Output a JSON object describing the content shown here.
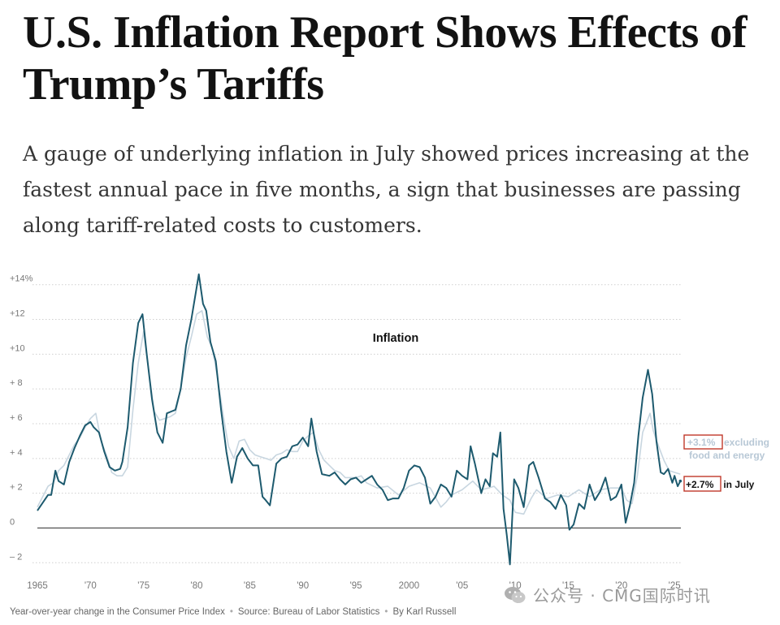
{
  "article": {
    "headline": "U.S. Inflation Report Shows Effects of Trump’s Tariffs",
    "dek": "A gauge of underlying inflation in July showed prices increasing at the fastest annual pace in five months, a sign that businesses are passing along tariff-related costs to customers."
  },
  "footer": {
    "description": "Year-over-year change in the Consumer Price Index",
    "source": "Source: Bureau of Labor Statistics",
    "byline": "By Karl Russell"
  },
  "watermark": {
    "text": "公众号 · CMG国际时讯",
    "icon": "wechat-icon"
  },
  "chart_data": {
    "type": "line",
    "title": "Inflation",
    "xlabel": "",
    "ylabel": "",
    "xlim": [
      1965,
      2025.6
    ],
    "ylim": [
      -2.5,
      14.5
    ],
    "x_ticks": [
      {
        "value": 1965,
        "label": "1965"
      },
      {
        "value": 1970,
        "label": "'70"
      },
      {
        "value": 1975,
        "label": "'75"
      },
      {
        "value": 1980,
        "label": "'80"
      },
      {
        "value": 1985,
        "label": "'85"
      },
      {
        "value": 1990,
        "label": "'90"
      },
      {
        "value": 1995,
        "label": "'95"
      },
      {
        "value": 2000,
        "label": "2000"
      },
      {
        "value": 2005,
        "label": "'05"
      },
      {
        "value": 2010,
        "label": "'10"
      },
      {
        "value": 2015,
        "label": "'15"
      },
      {
        "value": 2020,
        "label": "'20"
      },
      {
        "value": 2025,
        "label": "'25"
      }
    ],
    "y_ticks": [
      {
        "value": 14,
        "label": "+14%"
      },
      {
        "value": 12,
        "label": "+12"
      },
      {
        "value": 10,
        "label": "+10"
      },
      {
        "value": 8,
        "label": "+ 8"
      },
      {
        "value": 6,
        "label": "+ 6"
      },
      {
        "value": 4,
        "label": "+ 4"
      },
      {
        "value": 2,
        "label": "+ 2"
      },
      {
        "value": 0,
        "label": "0"
      },
      {
        "value": -2,
        "label": "– 2"
      }
    ],
    "grid": "dotted-horizontal",
    "colors": {
      "headline": "#1d5a6e",
      "core": "#c8d6e0",
      "highlight_box": "#c0392b"
    },
    "series": [
      {
        "name": "",
        "id": "headline",
        "end_label": {
          "value_text": "+2.7%",
          "suffix": " in July"
        },
        "x": [
          1965.0,
          1966.0,
          1966.3,
          1966.7,
          1967.0,
          1967.5,
          1968.0,
          1968.5,
          1969.0,
          1969.5,
          1970.0,
          1970.3,
          1970.8,
          1971.3,
          1971.8,
          1972.3,
          1972.8,
          1973.0,
          1973.5,
          1974.0,
          1974.5,
          1974.9,
          1975.3,
          1975.8,
          1976.3,
          1976.8,
          1977.2,
          1977.6,
          1978.0,
          1978.5,
          1979.0,
          1979.5,
          1980.2,
          1980.6,
          1980.9,
          1981.3,
          1981.8,
          1982.3,
          1982.8,
          1983.3,
          1983.8,
          1984.3,
          1984.8,
          1985.3,
          1985.8,
          1986.2,
          1986.5,
          1986.9,
          1987.5,
          1988.0,
          1988.5,
          1989.0,
          1989.5,
          1990.0,
          1990.5,
          1990.8,
          1991.3,
          1991.8,
          1992.5,
          1993.0,
          1993.5,
          1994.0,
          1994.5,
          1995.0,
          1995.5,
          1996.0,
          1996.5,
          1997.0,
          1997.5,
          1998.0,
          1998.5,
          1999.0,
          1999.5,
          2000.0,
          2000.5,
          2001.0,
          2001.5,
          2002.0,
          2002.5,
          2003.0,
          2003.5,
          2004.0,
          2004.5,
          2005.0,
          2005.5,
          2005.8,
          2006.2,
          2006.8,
          2007.2,
          2007.6,
          2007.9,
          2008.3,
          2008.6,
          2008.9,
          2009.2,
          2009.5,
          2009.9,
          2010.3,
          2010.8,
          2011.3,
          2011.7,
          2012.2,
          2012.8,
          2013.3,
          2013.8,
          2014.3,
          2014.8,
          2015.1,
          2015.5,
          2016.0,
          2016.5,
          2017.0,
          2017.5,
          2018.0,
          2018.5,
          2019.0,
          2019.5,
          2020.0,
          2020.4,
          2020.8,
          2021.2,
          2021.6,
          2022.0,
          2022.5,
          2022.9,
          2023.3,
          2023.7,
          2024.0,
          2024.4,
          2024.8,
          2025.0,
          2025.3,
          2025.55
        ],
        "y": [
          1.0,
          1.9,
          1.9,
          3.3,
          2.7,
          2.5,
          3.8,
          4.6,
          5.3,
          5.9,
          6.1,
          5.8,
          5.5,
          4.4,
          3.5,
          3.3,
          3.4,
          3.8,
          5.8,
          9.5,
          11.8,
          12.3,
          10.0,
          7.4,
          5.5,
          4.9,
          6.6,
          6.7,
          6.8,
          8.0,
          10.5,
          12.0,
          14.6,
          12.9,
          12.5,
          10.7,
          9.6,
          6.8,
          4.4,
          2.6,
          4.1,
          4.6,
          4.0,
          3.6,
          3.6,
          1.8,
          1.6,
          1.3,
          3.7,
          4.0,
          4.1,
          4.7,
          4.8,
          5.2,
          4.7,
          6.3,
          4.4,
          3.1,
          3.0,
          3.2,
          2.8,
          2.5,
          2.8,
          2.9,
          2.6,
          2.8,
          3.0,
          2.5,
          2.2,
          1.6,
          1.7,
          1.7,
          2.3,
          3.3,
          3.6,
          3.5,
          2.9,
          1.4,
          1.8,
          2.5,
          2.3,
          1.8,
          3.3,
          3.0,
          2.8,
          4.7,
          3.7,
          2.0,
          2.8,
          2.4,
          4.3,
          4.1,
          5.5,
          1.1,
          -0.4,
          -2.1,
          2.8,
          2.3,
          1.2,
          3.6,
          3.8,
          2.9,
          1.7,
          1.5,
          1.1,
          1.9,
          1.3,
          -0.1,
          0.2,
          1.4,
          1.1,
          2.5,
          1.6,
          2.1,
          2.9,
          1.6,
          1.8,
          2.5,
          0.3,
          1.3,
          2.6,
          5.3,
          7.5,
          9.1,
          7.7,
          5.0,
          3.2,
          3.1,
          3.4,
          2.6,
          3.0,
          2.4,
          2.7
        ]
      },
      {
        "name": "excluding food and energy",
        "id": "core",
        "end_label": {
          "value_text": "+3.1%",
          "suffix": " excluding food and energy"
        },
        "x": [
          1965.0,
          1966.0,
          1966.5,
          1967.0,
          1967.5,
          1968.0,
          1968.5,
          1969.0,
          1969.5,
          1970.0,
          1970.5,
          1971.0,
          1971.5,
          1972.0,
          1972.5,
          1973.0,
          1973.5,
          1974.0,
          1974.5,
          1975.0,
          1975.5,
          1976.0,
          1976.5,
          1977.0,
          1977.5,
          1978.0,
          1978.5,
          1979.0,
          1979.5,
          1980.0,
          1980.5,
          1981.0,
          1981.5,
          1982.0,
          1982.5,
          1983.0,
          1983.5,
          1984.0,
          1984.5,
          1985.0,
          1985.5,
          1986.0,
          1986.5,
          1987.0,
          1987.5,
          1988.0,
          1988.5,
          1989.0,
          1989.5,
          1990.0,
          1990.5,
          1991.0,
          1991.5,
          1992.0,
          1992.5,
          1993.0,
          1993.5,
          1994.0,
          1994.5,
          1995.0,
          1995.5,
          1996.0,
          1997.0,
          1998.0,
          1999.0,
          2000.0,
          2001.0,
          2002.0,
          2003.0,
          2003.5,
          2004.0,
          2005.0,
          2006.0,
          2006.8,
          2007.5,
          2008.0,
          2008.8,
          2009.5,
          2010.0,
          2010.8,
          2011.5,
          2012.0,
          2013.0,
          2014.0,
          2015.0,
          2016.0,
          2017.0,
          2018.0,
          2019.0,
          2020.0,
          2020.5,
          2021.0,
          2021.5,
          2022.0,
          2022.7,
          2023.0,
          2023.5,
          2024.0,
          2024.5,
          2025.0,
          2025.55
        ],
        "y": [
          1.2,
          2.4,
          2.6,
          3.3,
          3.6,
          4.2,
          4.8,
          5.2,
          5.8,
          6.3,
          6.6,
          5.0,
          4.2,
          3.2,
          3.0,
          3.0,
          3.5,
          6.8,
          9.5,
          11.3,
          9.0,
          6.7,
          6.2,
          6.3,
          6.4,
          6.6,
          8.0,
          9.8,
          11.0,
          12.3,
          12.5,
          11.0,
          10.3,
          8.5,
          6.5,
          4.7,
          4.0,
          5.0,
          5.1,
          4.5,
          4.2,
          4.1,
          4.0,
          3.9,
          4.2,
          4.3,
          4.5,
          4.4,
          4.4,
          5.0,
          5.3,
          5.5,
          4.5,
          3.9,
          3.6,
          3.3,
          3.2,
          2.9,
          2.9,
          2.9,
          3.0,
          2.6,
          2.3,
          2.4,
          1.9,
          2.4,
          2.6,
          2.3,
          1.2,
          1.5,
          1.9,
          2.2,
          2.7,
          2.2,
          2.3,
          2.4,
          1.9,
          1.6,
          0.9,
          0.8,
          1.7,
          2.2,
          1.7,
          1.9,
          1.8,
          2.2,
          1.8,
          2.2,
          2.3,
          2.3,
          1.6,
          1.4,
          3.0,
          5.5,
          6.6,
          5.6,
          4.7,
          3.9,
          3.3,
          3.2,
          3.1
        ]
      }
    ],
    "baseline": 0
  }
}
